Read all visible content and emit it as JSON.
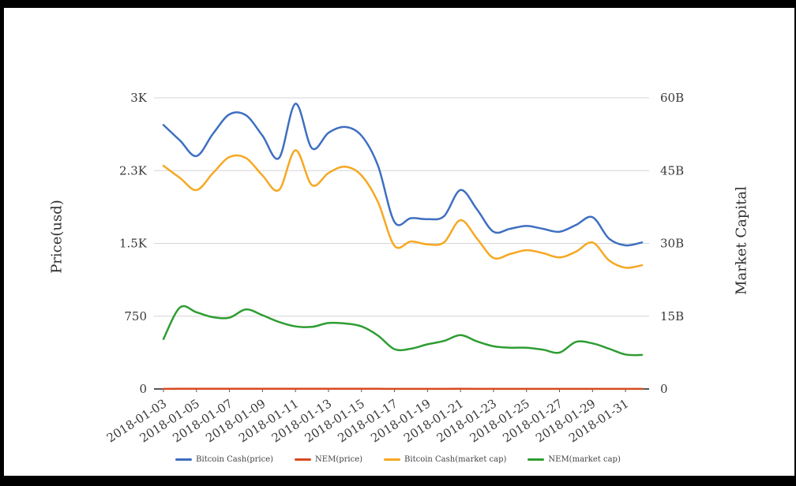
{
  "chart_data": {
    "type": "line",
    "smooth": true,
    "grid": true,
    "legend_position": "bottom",
    "x": [
      "2018-01-03",
      "2018-01-04",
      "2018-01-05",
      "2018-01-06",
      "2018-01-07",
      "2018-01-08",
      "2018-01-09",
      "2018-01-10",
      "2018-01-11",
      "2018-01-12",
      "2018-01-13",
      "2018-01-14",
      "2018-01-15",
      "2018-01-16",
      "2018-01-17",
      "2018-01-18",
      "2018-01-19",
      "2018-01-20",
      "2018-01-21",
      "2018-01-22",
      "2018-01-23",
      "2018-01-24",
      "2018-01-25",
      "2018-01-26",
      "2018-01-27",
      "2018-01-28",
      "2018-01-29",
      "2018-01-30",
      "2018-01-31",
      "2018-02-01"
    ],
    "x_tick_labels": [
      "2018-01-03",
      "2018-01-05",
      "2018-01-07",
      "2018-01-09",
      "2018-01-11",
      "2018-01-13",
      "2018-01-15",
      "2018-01-17",
      "2018-01-19",
      "2018-01-21",
      "2018-01-23",
      "2018-01-25",
      "2018-01-27",
      "2018-01-29",
      "2018-01-31"
    ],
    "left_axis": {
      "title": "Price(usd)",
      "tick_labels": [
        "0",
        "750",
        "1.5K",
        "2.3K",
        "3K"
      ],
      "tick_values": [
        0,
        750,
        1500,
        2250,
        3000
      ],
      "range": [
        0,
        3000
      ]
    },
    "right_axis": {
      "title": "Market Capital",
      "tick_labels": [
        "0",
        "15B",
        "30B",
        "45B",
        "60B"
      ],
      "tick_values": [
        0,
        15,
        30,
        45,
        60
      ],
      "range": [
        0,
        60
      ],
      "unit": "B"
    },
    "series": [
      {
        "name": "Bitcoin Cash(price)",
        "axis": "left",
        "color": "#3e6fc1",
        "values": [
          2720,
          2560,
          2400,
          2630,
          2830,
          2820,
          2610,
          2380,
          2940,
          2480,
          2640,
          2700,
          2610,
          2300,
          1720,
          1760,
          1750,
          1780,
          2050,
          1850,
          1620,
          1650,
          1680,
          1650,
          1620,
          1690,
          1770,
          1550,
          1480,
          1510
        ]
      },
      {
        "name": "NEM(price)",
        "axis": "left",
        "color": "#d84a20",
        "values": [
          1.14,
          1.87,
          1.76,
          1.64,
          1.63,
          1.82,
          1.69,
          1.53,
          1.43,
          1.42,
          1.51,
          1.5,
          1.43,
          1.22,
          0.91,
          0.92,
          1.02,
          1.1,
          1.23,
          1.09,
          0.98,
          0.94,
          0.94,
          0.9,
          0.83,
          1.08,
          1.04,
          0.92,
          0.79,
          0.78
        ]
      },
      {
        "name": "Bitcoin Cash(market cap)",
        "axis": "right",
        "color": "#f6a822",
        "values": [
          46,
          43.5,
          41,
          44.5,
          47.8,
          47.6,
          44,
          41,
          49.2,
          42,
          44.5,
          45.8,
          44,
          38.5,
          29.5,
          30.4,
          29.8,
          30.2,
          34.8,
          31,
          27,
          27.8,
          28.6,
          28,
          27.1,
          28.3,
          30.2,
          26.5,
          25,
          25.5
        ]
      },
      {
        "name": "NEM(market cap)",
        "axis": "right",
        "color": "#2e9d32",
        "values": [
          10.3,
          16.8,
          15.8,
          14.8,
          14.7,
          16.4,
          15.2,
          13.8,
          12.9,
          12.8,
          13.6,
          13.5,
          12.9,
          11,
          8.2,
          8.3,
          9.2,
          9.9,
          11.1,
          9.8,
          8.8,
          8.5,
          8.5,
          8.1,
          7.5,
          9.7,
          9.4,
          8.3,
          7.1,
          7.0
        ]
      }
    ],
    "colors": {
      "grid": "#d6d6d6",
      "zero_axis": "#1f1f1f",
      "tick_text": "#3a3a3a",
      "frame": "#000000"
    }
  }
}
